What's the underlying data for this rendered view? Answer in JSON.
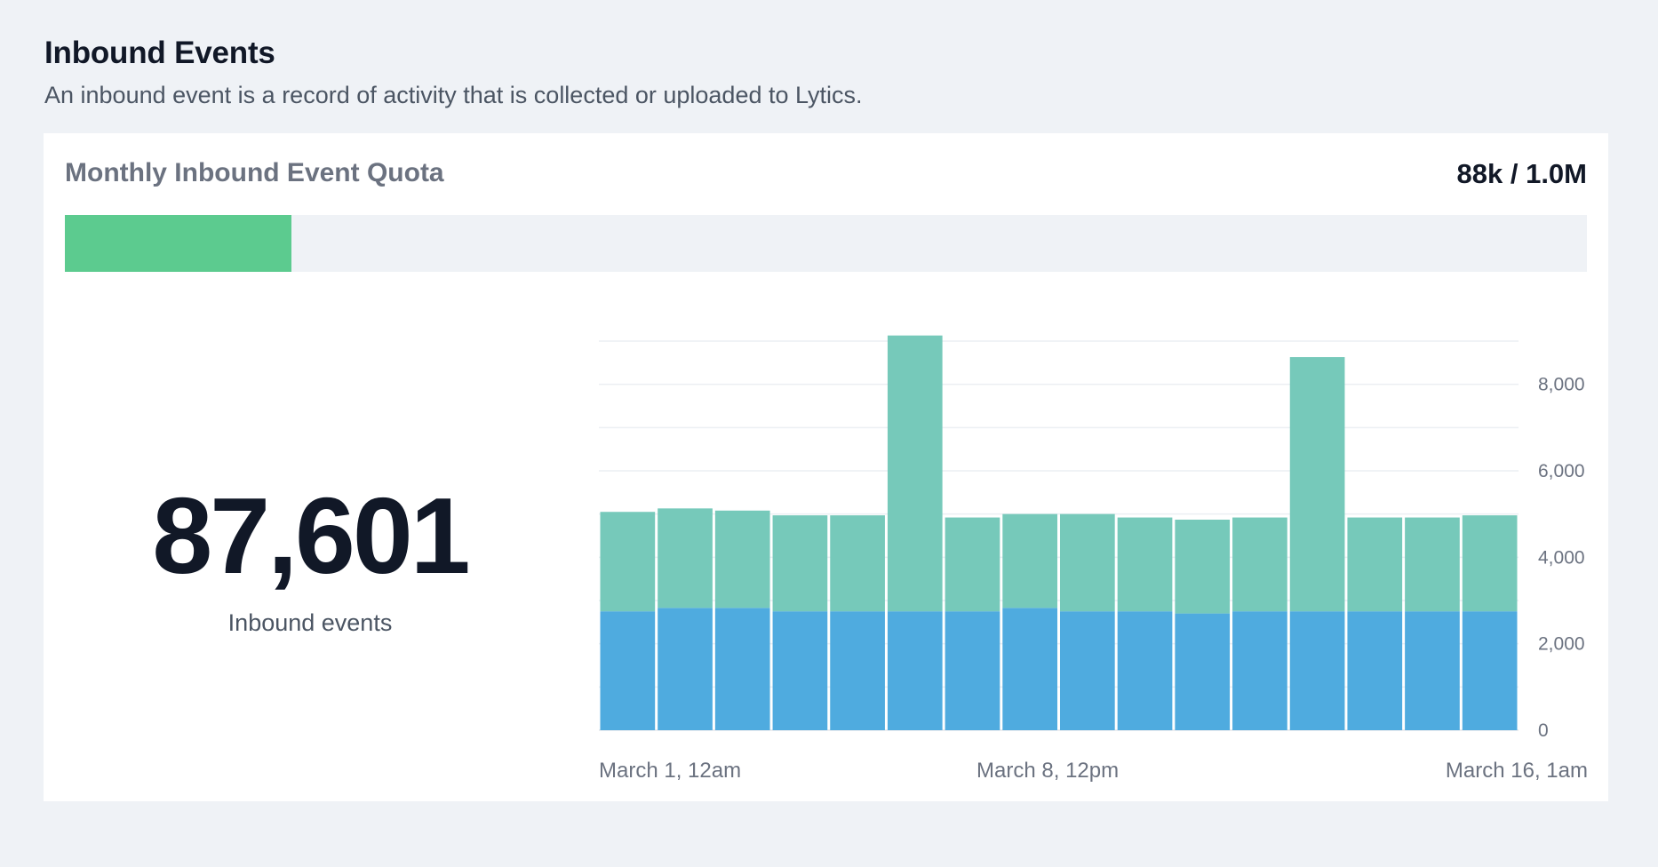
{
  "header": {
    "title": "Inbound Events",
    "subtitle": "An inbound event is a record of activity that is collected or uploaded to Lytics."
  },
  "quota": {
    "title": "Monthly Inbound Event Quota",
    "value_label": "88k / 1.0M",
    "used": 87601,
    "limit": 1000000,
    "fill_color": "#5ccb8f"
  },
  "summary": {
    "total": "87,601",
    "label": "Inbound events"
  },
  "chart_data": {
    "type": "bar",
    "stacked": true,
    "x_labels": [
      "March 1, 12am",
      "March 8, 12pm",
      "March 16, 1am"
    ],
    "y_ticks": [
      "0",
      "2,000",
      "4,000",
      "6,000",
      "8,000"
    ],
    "ylim": [
      0,
      9000
    ],
    "grid": true,
    "y_axis_position": "right",
    "series": [
      {
        "color": "#4fabdf",
        "values": [
          2750,
          2830,
          2830,
          2750,
          2750,
          2750,
          2750,
          2830,
          2750,
          2750,
          2700,
          2750,
          2750,
          2750,
          2750,
          2750
        ]
      },
      {
        "color": "#76c9ba",
        "values": [
          2300,
          2300,
          2250,
          2220,
          2220,
          6380,
          2170,
          2170,
          2250,
          2170,
          2170,
          2170,
          5880,
          2170,
          2170,
          2220
        ]
      }
    ]
  }
}
